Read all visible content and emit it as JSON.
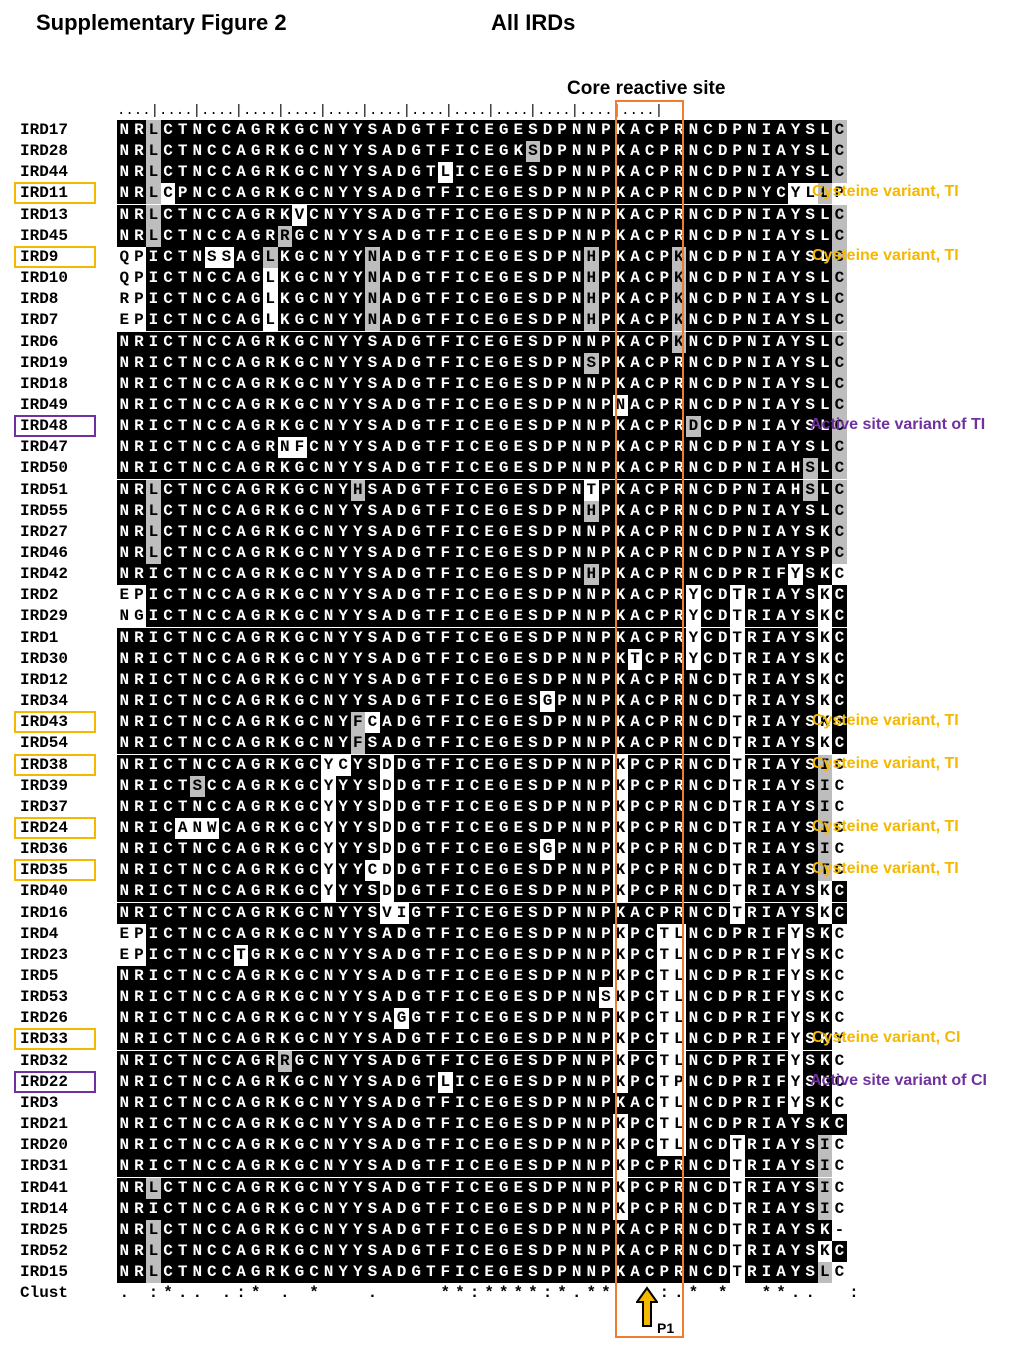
{
  "header": {
    "figure_title": "Supplementary Figure 2",
    "subtitle": "All IRDs",
    "core_label": "Core reactive site"
  },
  "ruler": "....|....|....|....|....|....|....|....|....|....|....|....|....|",
  "colors": {
    "yellow": "#f5b800",
    "purple": "#7030a0",
    "orange": "#ed7d31",
    "gray": "#bdbdbd"
  },
  "rows": [
    {
      "name": "IRD17",
      "seq": "NRLCTNCCAGRKGCNYYSADGTFICEGESDPNNPKACPRNCDPNIAYSLC",
      "shade": "..g..............................................gw"
    },
    {
      "name": "IRD28",
      "seq": "NRLCTNCCAGRKGCNYYSADGTFICEGKSDPNNPKACPRNCDPNIAYSLC",
      "shade": "..g.........................g....................gw"
    },
    {
      "name": "IRD44",
      "seq": "NRLCTNCCAGRKGCNYYSADGTLICEGESDPNNPKACPRNCDPNIAYSLC",
      "shade": "..g...................w..........................gw"
    },
    {
      "name": "IRD11",
      "seq": "NRLCPNCCAGRKGCNYYSADGTFICEGESDPNNPKACPRNCDPNYCYLLP",
      "shade": "..gw..........................................wwgww"
    },
    {
      "name": "IRD13",
      "seq": "NRLCTNCCAGRKVCNYYSADGTFICEGESDPNNPKACPRNCDPNIAYSLC",
      "shade": "..g.........w....................................gw"
    },
    {
      "name": "IRD45",
      "seq": "NRLCTNCCAGRRGCNYYSADGTFICEGESDPNNPKACPRNCDPNIAYSLC",
      "shade": "..g........g.....................................gw"
    },
    {
      "name": "IRD9",
      "seq": "QPICTNSSAGLKGCNYYNADGTFICEGESDPNHPKACPKNCDPNIAYSLC",
      "shade": "ww....ww..g......g..............g.....g..........gw"
    },
    {
      "name": "IRD10",
      "seq": "QPICTNCCAGLKGCNYYNADGTFICEGESDPNHPKACPKNCDPNIAYSLC",
      "shade": "ww........w......g..............g.....g..........gw"
    },
    {
      "name": "IRD8",
      "seq": "RPICTNCCAGLKGCNYYNADGTFICEGESDPNHPKACPKNCDPNIAYSLC",
      "shade": "ww........w......g..............g.....g..........gw"
    },
    {
      "name": "IRD7",
      "seq": "EPICTNCCAGLKGCNYYNADGTFICEGESDPNHPKACPKNCDPNIAYSLC",
      "shade": "ww........w......g..............g.....g..........gw"
    },
    {
      "name": "IRD6",
      "seq": "NRICTNCCAGRKGCNYYSADGTFICEGESDPNNPKACPKNCDPNIAYSLC",
      "shade": "......................................g..........gw"
    },
    {
      "name": "IRD19",
      "seq": "NRICTNCCAGRKGCNYYSADGTFICEGESDPNSPKACPRNCDPNIAYSLC",
      "shade": "................................g................gw"
    },
    {
      "name": "IRD18",
      "seq": "NRICTNCCAGRKGCNYYSADGTFICEGESDPNNPKACPRNCDPNIAYSLC",
      "shade": ".................................................gw"
    },
    {
      "name": "IRD49",
      "seq": "NRICTNCCAGRKGCNYYSADGTFICEGESDPNNPNACPRNCDPNIAYSLC",
      "shade": "..................................w..............gw"
    },
    {
      "name": "IRD48",
      "seq": "NRICTNCCAGRKGCNYYSADGTFICEGESDPNNPKACPRDCDPNIAYSLC",
      "shade": ".......................................g.........gw"
    },
    {
      "name": "IRD47",
      "seq": "NRICTNCCAGRNFCNYYSADGTFICEGESDPNNPKACPRNCDPNIAYSLC",
      "shade": "...........ww....................................gw"
    },
    {
      "name": "IRD50",
      "seq": "NRICTNCCAGRKGCNYYSADGTFICEGESDPNNPKACPRNCDPNIAHSLC",
      "shade": "...............................................g.gw"
    },
    {
      "name": "IRD51",
      "seq": "NRLCTNCCAGRKGCNYHSADGTFICEGESDPNTPKACPRNCDPNIAHSLC",
      "shade": "..g.............g...............w..............g.gw"
    },
    {
      "name": "IRD55",
      "seq": "NRLCTNCCAGRKGCNYYSADGTFICEGESDPNHPKACPRNCDPNIAYSLC",
      "shade": "..g.............................g................gw"
    },
    {
      "name": "IRD27",
      "seq": "NRLCTNCCAGRKGCNYYSADGTFICEGESDPNNPKACPRNCDPNIAYSKC",
      "shade": "..g..............................................gw"
    },
    {
      "name": "IRD46",
      "seq": "NRLCTNCCAGRKGCNYYSADGTFICEGESDPNNPKACPRNCDPNIAYSPC",
      "shade": "..g..............................................gw"
    },
    {
      "name": "IRD42",
      "seq": "NRICTNCCAGRKGCNYYSADGTFICEGESDPNHPKACPRNCDPRIFYSKC",
      "shade": "................................g.............w..w"
    },
    {
      "name": "IRD2",
      "seq": "EPICTNCCAGRKGCNYYSADGTFICEGESDPNNPKACPRYCDTRIAYSKC",
      "shade": "ww.....................................w..w.....w"
    },
    {
      "name": "IRD29",
      "seq": "NGICTNCCAGRKGCNYYSADGTFICEGESDPNNPKACPRYCDTRIAYSKC",
      "shade": "ww.....................................w..w.....w"
    },
    {
      "name": "IRD1",
      "seq": "NRICTNCCAGRKGCNYYSADGTFICEGESDPNNPKACPRYCDTRIAYSKC",
      "shade": ".......................................w..w.....w"
    },
    {
      "name": "IRD30",
      "seq": "NRICTNCCAGRKGCNYYSADGTFICEGESDPNNPKTCPRYCDTRIAYSKC",
      "shade": "...................................w...w..w.....w"
    },
    {
      "name": "IRD12",
      "seq": "NRICTNCCAGRKGCNYYSADGTFICEGESDPNNPKACPRNCDTRIAYSKC",
      "shade": "..........................................w.....w"
    },
    {
      "name": "IRD34",
      "seq": "NRICTNCCAGRKGCNYYSADGTFICEGESGPNNPKACPRNCDTRIAYSKC",
      "shade": ".............................w............w.....w"
    },
    {
      "name": "IRD43",
      "seq": "NRICTNCCAGRKGCNYFCADGTFICEGESDPNNPKACPRNCDTRIAYSKC",
      "shade": "................gw........................w.....w"
    },
    {
      "name": "IRD54",
      "seq": "NRICTNCCAGRKGCNYFSADGTFICEGESDPNNPKACPRNCDTRIAYSKC",
      "shade": "................g.........................w.....w"
    },
    {
      "name": "IRD38",
      "seq": "NRICTNCCAGRKGCYCYSDDGTFICEGESDPNNPKPCPRNCDTRIAYSIC",
      "shade": "..............ww..w...............w.......w.....gw"
    },
    {
      "name": "IRD39",
      "seq": "NRICTSCCAGRKGCYYYSDDGTFICEGESDPNNPKPCPRNCDTRIAYSIC",
      "shade": ".....g........w...w...............w.......w.....gw"
    },
    {
      "name": "IRD37",
      "seq": "NRICTNCCAGRKGCYYYSDDGTFICEGESDPNNPKPCPRNCDTRIAYSIC",
      "shade": "..............w...w...............w.......w.....gw"
    },
    {
      "name": "IRD24",
      "seq": "NRICANWCAGRKGCYYYSDDGTFICEGESDPNNPKPCPRNCDTRIAYSIC",
      "shade": "....www.......w...w...............w.......w.....gw"
    },
    {
      "name": "IRD36",
      "seq": "NRICTNCCAGRKGCYYYSDDGTFICEGESGPNNPKPCPRNCDTRIAYSIC",
      "shade": "..............w...w..........w....w.......w.....gw"
    },
    {
      "name": "IRD35",
      "seq": "NRICTNCCAGRKGCYYYCDDGTFICEGESDPNNPKPCPRNCDTRIAYSTC",
      "shade": "..............w..ww...............w.......w.....gw"
    },
    {
      "name": "IRD40",
      "seq": "NRICTNCCAGRKGCYYYSDDGTFICEGESDPNNPKPCPRNCDTRIAYSKC",
      "shade": "..............w...w...............w.......w.....w"
    },
    {
      "name": "IRD16",
      "seq": "NRICTNCCAGRKGCNYYSVIGTFICEGESDPNNPKACPRNCDTRIAYSKC",
      "shade": "..................ww......................w.....w"
    },
    {
      "name": "IRD4",
      "seq": "EPICTNCCAGRKGCNYYSADGTFICEGESDPNNPKPCTLNCDPRIFYSKC",
      "shade": "ww................................w..ww.......w..w"
    },
    {
      "name": "IRD23",
      "seq": "EPICTNCCTGRKGCNYYSADGTFICEGESDPNNPKPCTLNCDPRIFYSKC",
      "shade": "ww......w.........................w..ww.......w..w"
    },
    {
      "name": "IRD5",
      "seq": "NRICTNCCAGRKGCNYYSADGTFICEGESDPNNPKPCTLNCDPRIFYSKC",
      "shade": "..................................w..ww.......w..w"
    },
    {
      "name": "IRD53",
      "seq": "NRICTNCCAGRKGCNYYSADGTFICEGESDPNNSKPCTLNCDPRIFYSKC",
      "shade": ".................................ww..ww.......w..w"
    },
    {
      "name": "IRD26",
      "seq": "NRICTNCCAGRKGCNYYSAGGTFICEGESDPNNPKPCTLNCDPRIFYSKC",
      "shade": "...................w..............w..ww.......w..w"
    },
    {
      "name": "IRD33",
      "seq": "NRICTNCCAGRKGCNYYSADGTFICEGESDPNNPKPCTLNCDPRIFYSKY",
      "shade": "..................................w..ww.......w..ww"
    },
    {
      "name": "IRD32",
      "seq": "NRICTNCCAGRRGCNYYSADGTFICEGESDPNNPKPCTLNCDPRIFYSKC",
      "shade": "...........g......................w..ww.......w..w"
    },
    {
      "name": "IRD22",
      "seq": "NRICTNCCAGRKGCNYYSADGTLICEGESDPNNPKPCTPNCDPRIFYSKC",
      "shade": "......................w...........w..ww.......w..w"
    },
    {
      "name": "IRD3",
      "seq": "NRICTNCCAGRKGCNYYSADGTFICEGESDPNNPKACTLNCDPRIFYSKC",
      "shade": ".....................................ww.......w..w"
    },
    {
      "name": "IRD21",
      "seq": "NRICTNCCAGRKGCNYYSADGTFICEGESDPNNPKPCTLNCDPRIAYSKC",
      "shade": "..................................w..ww...........w"
    },
    {
      "name": "IRD20",
      "seq": "NRICTNCCAGRKGCNYYSADGTFICEGESDPNNPKPCTLNCDTRIAYSIC",
      "shade": "..................................w..ww...w.....gw"
    },
    {
      "name": "IRD31",
      "seq": "NRICTNCCAGRKGCNYYSADGTFICEGESDPNNPKPCPRNCDTRIAYSIC",
      "shade": "..................................w.......w.....gw"
    },
    {
      "name": "IRD41",
      "seq": "NRLCTNCCAGRKGCNYYSADGTFICEGESDPNNPKPCPRNCDTRIAYSIC",
      "shade": "..g...............................w.......w.....gw"
    },
    {
      "name": "IRD14",
      "seq": "NRICTNCCAGRKGCNYYSADGTFICEGESDPNNPKPCPRNCDTRIAYSIC",
      "shade": "..................................w.......w.....gw"
    },
    {
      "name": "IRD25",
      "seq": "NRLCTNCCAGRKGCNYYSADGTFICEGESDPNNPKACPRNCDTRIAYSK-",
      "shade": "..g.......................................w......e"
    },
    {
      "name": "IRD52",
      "seq": "NRLCTNCCAGRKGCNYYSADGTFICEGESDPNNPKACPRNCDTRIAYSKC",
      "shade": "..g.......................................w.....w"
    },
    {
      "name": "IRD15",
      "seq": "NRLCTNCCAGRKGCNYYSADGTFICEGESDPNNPKACPRNCDTRIAYSLC",
      "shade": "..g.......................................w.....gw"
    }
  ],
  "clustal": {
    "name": "Clust",
    "text": ". :*.. .:* . *   .    **:****:*.**  .:.* *  **..  :"
  },
  "annotations": [
    {
      "row": "IRD11",
      "label": "Cysteine variant, TI",
      "color": "yellow"
    },
    {
      "row": "IRD9",
      "label": "Cysteine variant, TI",
      "color": "yellow"
    },
    {
      "row": "IRD48",
      "label": "Active site variant of TI",
      "color": "purple"
    },
    {
      "row": "IRD43",
      "label": "Cysteine variant, TI",
      "color": "yellow"
    },
    {
      "row": "IRD38",
      "label": "Cysteine variant, TI",
      "color": "yellow"
    },
    {
      "row": "IRD24",
      "label": "Cysteine variant, TI",
      "color": "yellow"
    },
    {
      "row": "IRD35",
      "label": "Cysteine variant, TI",
      "color": "yellow"
    },
    {
      "row": "IRD33",
      "label": "Cysteine variant, CI",
      "color": "yellow"
    },
    {
      "row": "IRD22",
      "label": "Active site variant of CI",
      "color": "purple"
    }
  ],
  "p1_label": "P1"
}
